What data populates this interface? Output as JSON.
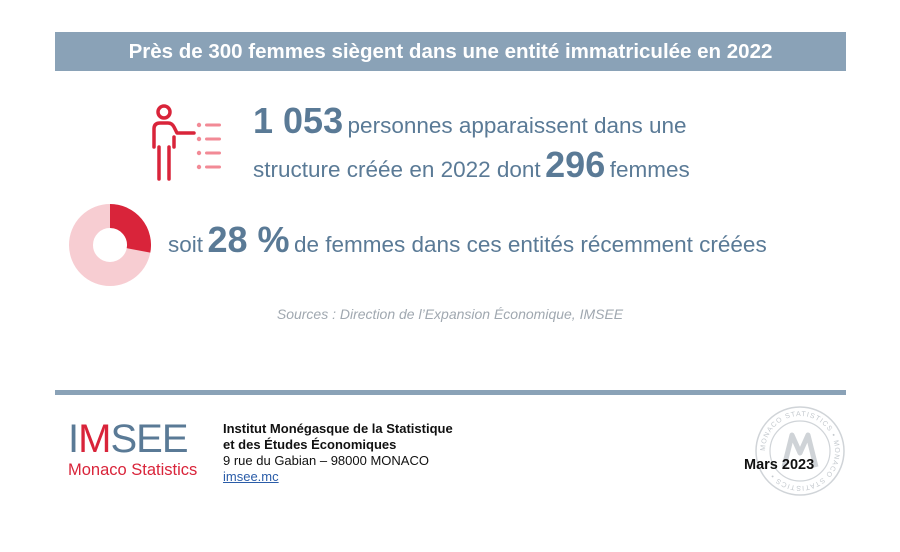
{
  "title": "Près de 300 femmes siègent dans une entité immatriculée en 2022",
  "stats": {
    "persons_number": "1 053",
    "persons_text": "personnes apparaissent dans une",
    "structure_text": "structure créée en 2022 dont",
    "women_number": "296",
    "women_text": "femmes",
    "soit": "soit",
    "percent_value": "28 %",
    "percent_text": "de femmes dans ces entités récemment créées",
    "percent_fraction": 0.28
  },
  "sources": "Sources : Direction de l’Expansion Économique, IMSEE",
  "footer": {
    "logo_main_1": "I",
    "logo_main_red": "M",
    "logo_main_2": "SEE",
    "logo_sub": "Monaco Statistics",
    "org_line1": "Institut Monégasque de la Statistique",
    "org_line2": "et des Études Économiques",
    "address": "9 rue du Gabian – 98000 MONACO",
    "website": "imsee.mc",
    "date": "Mars 2023",
    "seal_text": "MONACO STATISTICS • MONACO STATISTICS •"
  },
  "colors": {
    "accent_red": "#d9243a",
    "light_pink": "#f7cdd2",
    "banner": "#8aa2b7",
    "text_blue": "#5a7a96"
  },
  "icons": {
    "person": "person-pointing-list-icon",
    "donut": "donut-chart-icon",
    "seal": "monaco-statistics-seal-icon"
  }
}
